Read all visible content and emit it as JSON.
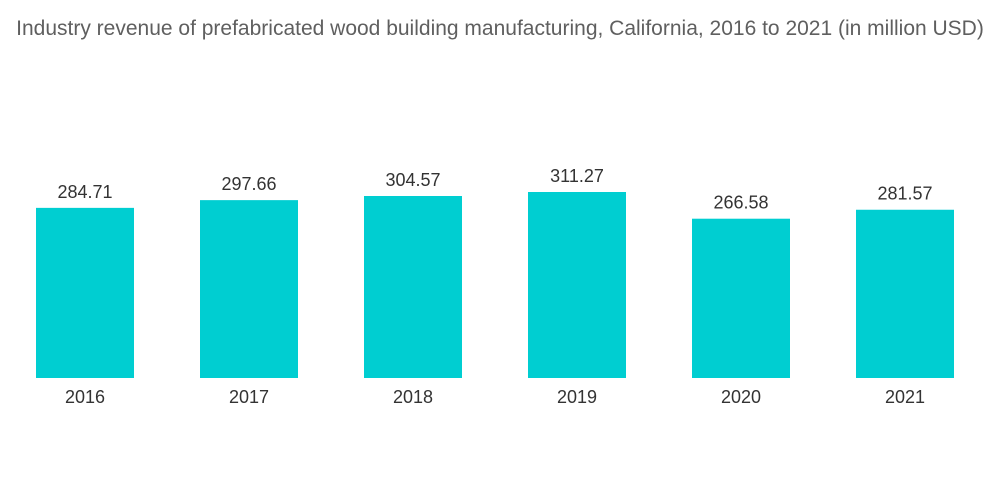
{
  "chart_data": {
    "type": "bar",
    "title": "Industry revenue of prefabricated wood building manufacturing, California, 2016 to 2021 (in million USD)",
    "categories": [
      "2016",
      "2017",
      "2018",
      "2019",
      "2020",
      "2021"
    ],
    "values": [
      284.71,
      297.66,
      304.57,
      311.27,
      266.58,
      281.57
    ],
    "value_labels": [
      "284.71",
      "297.66",
      "304.57",
      "311.27",
      "266.58",
      "281.57"
    ],
    "xlabel": "",
    "ylabel": "",
    "ylim": [
      0,
      311.27
    ],
    "grid": false,
    "legend": "none",
    "bar_color": "#00CED1"
  }
}
